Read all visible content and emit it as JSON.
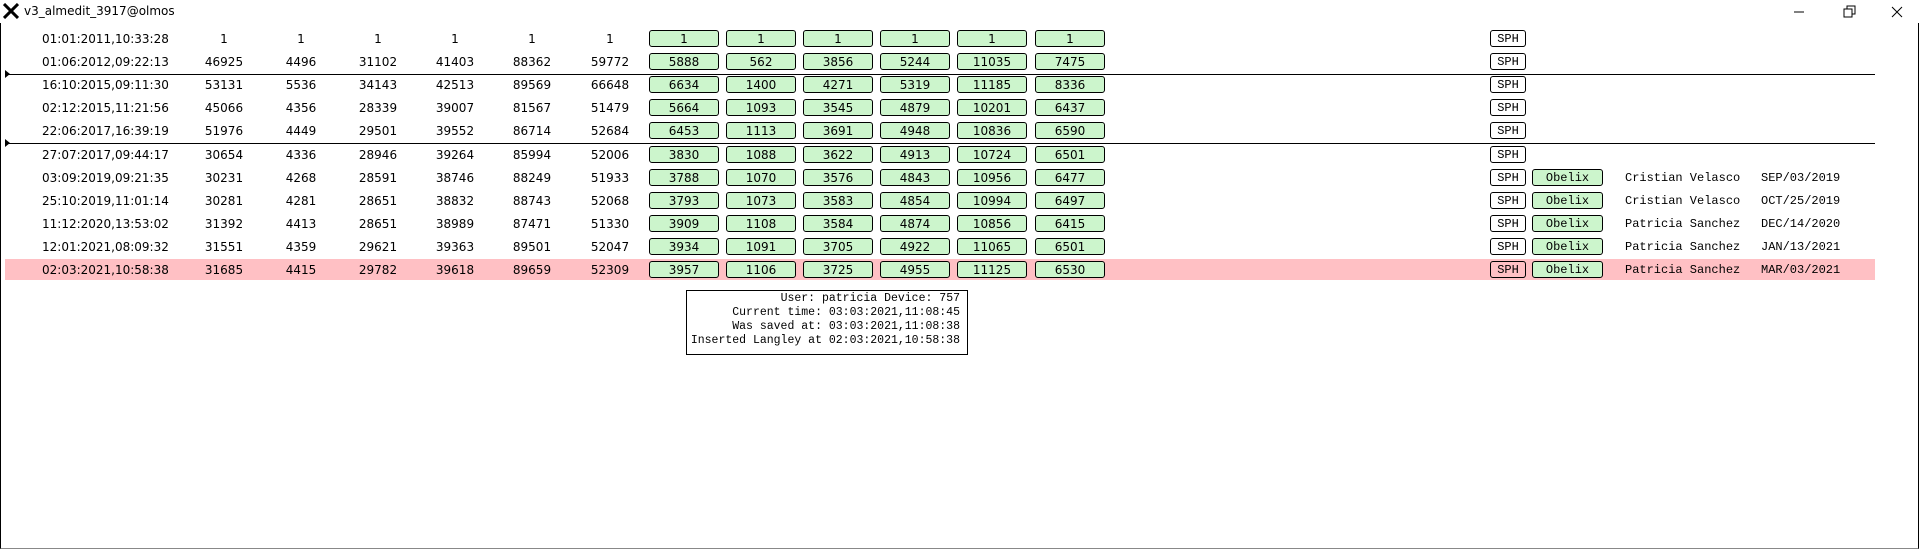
{
  "window": {
    "title": "v3_almedit_3917@olmos"
  },
  "rows": [
    {
      "time": "01:01:2011,10:33:28",
      "values": [
        1,
        1,
        1,
        1,
        1,
        1
      ],
      "buttons": [
        1,
        1,
        1,
        1,
        1,
        1
      ],
      "sph": "SPH"
    },
    {
      "time": "01:06:2012,09:22:13",
      "values": [
        46925,
        4496,
        31102,
        41403,
        88362,
        59772
      ],
      "buttons": [
        5888,
        562,
        3856,
        5244,
        11035,
        7475
      ],
      "sph": "SPH"
    },
    {
      "time": "16:10:2015,09:11:30",
      "values": [
        53131,
        5536,
        34143,
        42513,
        89569,
        66648
      ],
      "buttons": [
        6634,
        1400,
        4271,
        5319,
        11185,
        8336
      ],
      "sph": "SPH"
    },
    {
      "time": "02:12:2015,11:21:56",
      "values": [
        45066,
        4356,
        28339,
        39007,
        81567,
        51479
      ],
      "buttons": [
        5664,
        1093,
        3545,
        4879,
        10201,
        6437
      ],
      "sph": "SPH"
    },
    {
      "time": "22:06:2017,16:39:19",
      "values": [
        51976,
        4449,
        29501,
        39552,
        86714,
        52684
      ],
      "buttons": [
        6453,
        1113,
        3691,
        4948,
        10836,
        6590
      ],
      "sph": "SPH"
    },
    {
      "time": "27:07:2017,09:44:17",
      "values": [
        30654,
        4336,
        28946,
        39264,
        85994,
        52006
      ],
      "buttons": [
        3830,
        1088,
        3622,
        4913,
        10724,
        6501
      ],
      "sph": "SPH"
    },
    {
      "time": "03:09:2019,09:21:35",
      "values": [
        30231,
        4268,
        28591,
        38746,
        88249,
        51933
      ],
      "buttons": [
        3788,
        1070,
        3576,
        4843,
        10956,
        6477
      ],
      "sph": "SPH",
      "obelix": "Obelix",
      "name": "Cristian Velasco",
      "date": "SEP/03/2019"
    },
    {
      "time": "25:10:2019,11:01:14",
      "values": [
        30281,
        4281,
        28651,
        38832,
        88743,
        52068
      ],
      "buttons": [
        3793,
        1073,
        3583,
        4854,
        10994,
        6497
      ],
      "sph": "SPH",
      "obelix": "Obelix",
      "name": "Cristian Velasco",
      "date": "OCT/25/2019"
    },
    {
      "time": "11:12:2020,13:53:02",
      "values": [
        31392,
        4413,
        28651,
        38989,
        87471,
        51330
      ],
      "buttons": [
        3909,
        1108,
        3584,
        4874,
        10856,
        6415
      ],
      "sph": "SPH",
      "obelix": "Obelix",
      "name": "Patricia Sanchez",
      "date": "DEC/14/2020"
    },
    {
      "time": "12:01:2021,08:09:32",
      "values": [
        31551,
        4359,
        29621,
        39363,
        89501,
        52047
      ],
      "buttons": [
        3934,
        1091,
        3705,
        4922,
        11065,
        6501
      ],
      "sph": "SPH",
      "obelix": "Obelix",
      "name": "Patricia Sanchez",
      "date": "JAN/13/2021"
    },
    {
      "time": "02:03:2021,10:58:38",
      "values": [
        31685,
        4415,
        29782,
        39618,
        89659,
        52309
      ],
      "buttons": [
        3957,
        1106,
        3725,
        4955,
        11125,
        6530
      ],
      "sph": "SPH",
      "obelix": "Obelix",
      "name": "Patricia Sanchez",
      "date": "MAR/03/2021",
      "highlighted": true
    }
  ],
  "tooltip": [
    "User: patricia Device: 757",
    "Current time: 03:03:2021,11:08:45",
    "Was saved at: 03:03:2021,11:08:38",
    "Inserted Langley at 02:03:2021,10:58:38"
  ]
}
